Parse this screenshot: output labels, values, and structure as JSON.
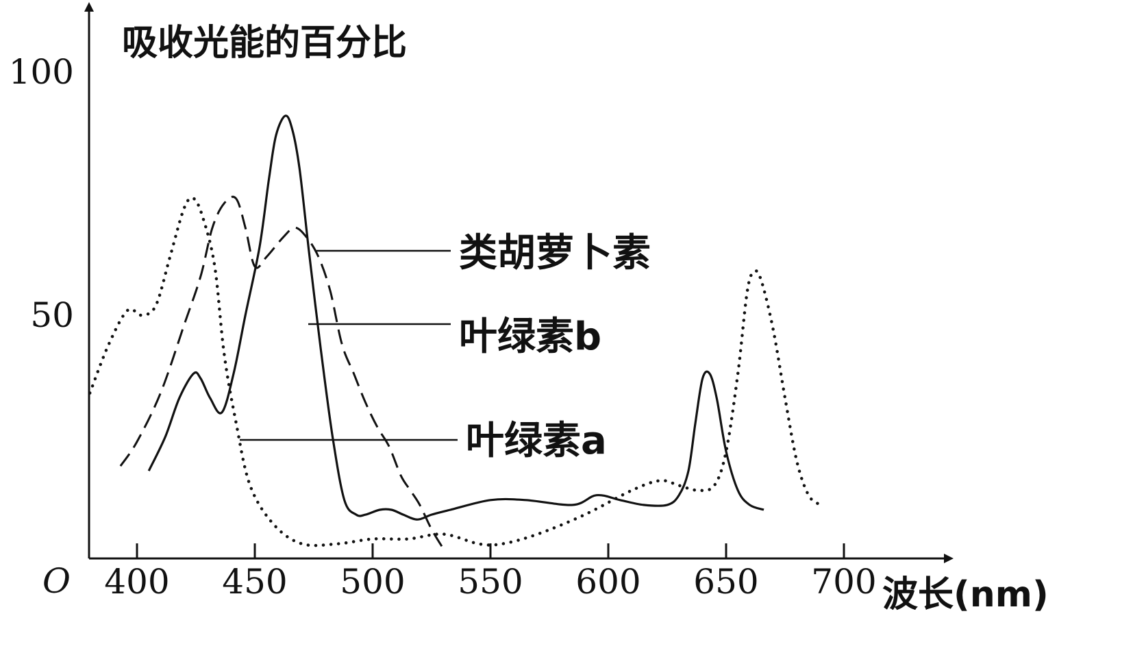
{
  "chart_data": {
    "type": "line",
    "title": "",
    "ylabel": "吸收光能的百分比",
    "xlabel": "波长(nm)",
    "origin_label": "O",
    "xlim": [
      380,
      720
    ],
    "ylim": [
      0,
      100
    ],
    "x_ticks": [
      "400",
      "450",
      "500",
      "550",
      "600",
      "650",
      "700"
    ],
    "y_ticks": [
      "50",
      "100"
    ],
    "grid": false,
    "series": [
      {
        "name": "类胡萝卜素",
        "style": "dashed",
        "points": [
          [
            393,
            19
          ],
          [
            400,
            24
          ],
          [
            410,
            34
          ],
          [
            420,
            48
          ],
          [
            427,
            58
          ],
          [
            432,
            68
          ],
          [
            437,
            73
          ],
          [
            442,
            74
          ],
          [
            446,
            68
          ],
          [
            450,
            60
          ],
          [
            455,
            62
          ],
          [
            462,
            66
          ],
          [
            467,
            68
          ],
          [
            472,
            66
          ],
          [
            477,
            62
          ],
          [
            482,
            55
          ],
          [
            487,
            44
          ],
          [
            492,
            38
          ],
          [
            497,
            32
          ],
          [
            502,
            27
          ],
          [
            507,
            23
          ],
          [
            512,
            17
          ],
          [
            516,
            14
          ],
          [
            520,
            11
          ],
          [
            525,
            6
          ],
          [
            530,
            2
          ]
        ]
      },
      {
        "name": "叶绿素b",
        "style": "solid",
        "points": [
          [
            405,
            18
          ],
          [
            412,
            25
          ],
          [
            418,
            33
          ],
          [
            424,
            38
          ],
          [
            427,
            37
          ],
          [
            431,
            33
          ],
          [
            436,
            30
          ],
          [
            441,
            38
          ],
          [
            446,
            50
          ],
          [
            452,
            64
          ],
          [
            456,
            78
          ],
          [
            459,
            87
          ],
          [
            463,
            91
          ],
          [
            466,
            88
          ],
          [
            469,
            80
          ],
          [
            473,
            63
          ],
          [
            478,
            43
          ],
          [
            483,
            25
          ],
          [
            488,
            12
          ],
          [
            493,
            9
          ],
          [
            497,
            9
          ],
          [
            503,
            10
          ],
          [
            508,
            10
          ],
          [
            513,
            9
          ],
          [
            519,
            8
          ],
          [
            525,
            9
          ],
          [
            533,
            10
          ],
          [
            550,
            12
          ],
          [
            565,
            12
          ],
          [
            585,
            11
          ],
          [
            595,
            13
          ],
          [
            605,
            12
          ],
          [
            615,
            11
          ],
          [
            625,
            11
          ],
          [
            630,
            13
          ],
          [
            634,
            18
          ],
          [
            637,
            28
          ],
          [
            640,
            37
          ],
          [
            643,
            38
          ],
          [
            646,
            33
          ],
          [
            650,
            22
          ],
          [
            655,
            14
          ],
          [
            660,
            11
          ],
          [
            666,
            10
          ]
        ]
      },
      {
        "name": "叶绿素a",
        "style": "dotted",
        "points": [
          [
            380,
            34
          ],
          [
            388,
            44
          ],
          [
            396,
            51
          ],
          [
            402,
            50
          ],
          [
            408,
            52
          ],
          [
            414,
            62
          ],
          [
            420,
            72
          ],
          [
            424,
            74
          ],
          [
            428,
            70
          ],
          [
            433,
            60
          ],
          [
            437,
            42
          ],
          [
            442,
            28
          ],
          [
            448,
            15
          ],
          [
            458,
            7
          ],
          [
            470,
            3
          ],
          [
            485,
            3
          ],
          [
            500,
            4
          ],
          [
            515,
            4
          ],
          [
            530,
            5
          ],
          [
            545,
            3
          ],
          [
            555,
            3
          ],
          [
            570,
            5
          ],
          [
            590,
            9
          ],
          [
            610,
            14
          ],
          [
            622,
            16
          ],
          [
            630,
            15
          ],
          [
            638,
            14
          ],
          [
            645,
            15
          ],
          [
            650,
            22
          ],
          [
            655,
            38
          ],
          [
            659,
            55
          ],
          [
            662,
            59
          ],
          [
            665,
            57
          ],
          [
            670,
            47
          ],
          [
            675,
            33
          ],
          [
            680,
            20
          ],
          [
            685,
            13
          ],
          [
            690,
            11
          ]
        ]
      }
    ],
    "annotations": [
      "类胡萝卜素",
      "叶绿素b",
      "叶绿素a"
    ]
  }
}
